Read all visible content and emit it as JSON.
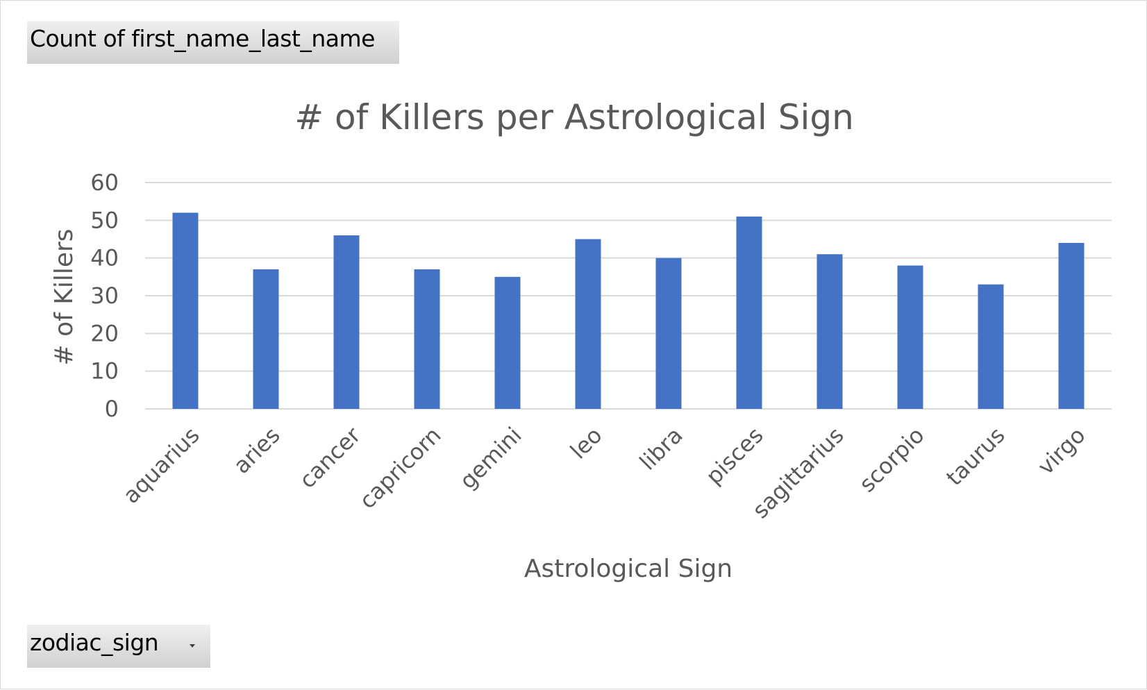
{
  "pivot": {
    "value_field_label": "Count of first_name_last_name",
    "axis_field_label": "zodiac_sign"
  },
  "colors": {
    "bar": "#4472c4",
    "gridline": "#d9d9d9",
    "text": "#595959"
  },
  "chart_data": {
    "type": "bar",
    "title": "# of Killers per Astrological Sign",
    "xlabel": "Astrological Sign",
    "ylabel": "# of Killers",
    "categories": [
      "aquarius",
      "aries",
      "cancer",
      "capricorn",
      "gemini",
      "leo",
      "libra",
      "pisces",
      "sagittarius",
      "scorpio",
      "taurus",
      "virgo"
    ],
    "values": [
      52,
      37,
      46,
      37,
      35,
      45,
      40,
      51,
      41,
      38,
      33,
      44
    ],
    "ylim": [
      0,
      60
    ],
    "yticks": [
      "0",
      "10",
      "20",
      "30",
      "40",
      "50",
      "60"
    ],
    "grid": true,
    "legend": "none"
  }
}
